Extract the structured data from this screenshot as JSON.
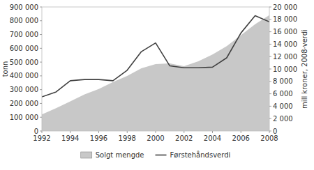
{
  "chart_data": {
    "type": "area",
    "x": [
      1992,
      1993,
      1994,
      1995,
      1996,
      1997,
      1998,
      1999,
      2000,
      2001,
      2002,
      2003,
      2004,
      2005,
      2006,
      2007,
      2008
    ],
    "xlim": [
      1992,
      2008
    ],
    "xticks": [
      1992,
      1994,
      1996,
      1998,
      2000,
      2002,
      2004,
      2006,
      2008
    ],
    "ylim": [
      0,
      900000
    ],
    "yticks": [
      0,
      {
        "value": 100000,
        "label": "100 000"
      },
      {
        "value": 200000,
        "label": "200 000"
      },
      {
        "value": 300000,
        "label": "300 000"
      },
      {
        "value": 400000,
        "label": "400 000"
      },
      {
        "value": 500000,
        "label": "500 000"
      },
      {
        "value": 600000,
        "label": "600 000"
      },
      {
        "value": 700000,
        "label": "700 000"
      },
      {
        "value": 800000,
        "label": "800 000"
      },
      {
        "value": 900000,
        "label": "900 000"
      }
    ],
    "y2lim": [
      0,
      20000
    ],
    "y2ticks": [
      0,
      {
        "value": 2000,
        "label": "2 000"
      },
      {
        "value": 4000,
        "label": "4 000"
      },
      {
        "value": 6000,
        "label": "6 000"
      },
      {
        "value": 8000,
        "label": "8 000"
      },
      {
        "value": 10000,
        "label": "10 000"
      },
      {
        "value": 12000,
        "label": "12 000"
      },
      {
        "value": 14000,
        "label": "14 000"
      },
      {
        "value": 16000,
        "label": "16 000"
      },
      {
        "value": 18000,
        "label": "18 000"
      },
      {
        "value": 20000,
        "label": "20 000"
      }
    ],
    "ylabel": "tonn",
    "y2label": "mill kroner, 2008·verdi",
    "grid": false,
    "legend": "bottom",
    "series": [
      {
        "name": "Solgt mengde",
        "type": "area",
        "color": "#c8c8c8",
        "values": [
          120000,
          165000,
          215000,
          265000,
          305000,
          355000,
          400000,
          455000,
          485000,
          490000,
          470000,
          505000,
          555000,
          615000,
          695000,
          775000,
          840000
        ]
      },
      {
        "name": "Førstehåndsverdi",
        "type": "line",
        "color": "#404040",
        "axis": "y2",
        "values": [
          5500,
          6300,
          8100,
          8300,
          8300,
          8100,
          9800,
          12800,
          14200,
          10500,
          10200,
          10200,
          10300,
          11800,
          15800,
          18600,
          17600
        ]
      }
    ]
  }
}
